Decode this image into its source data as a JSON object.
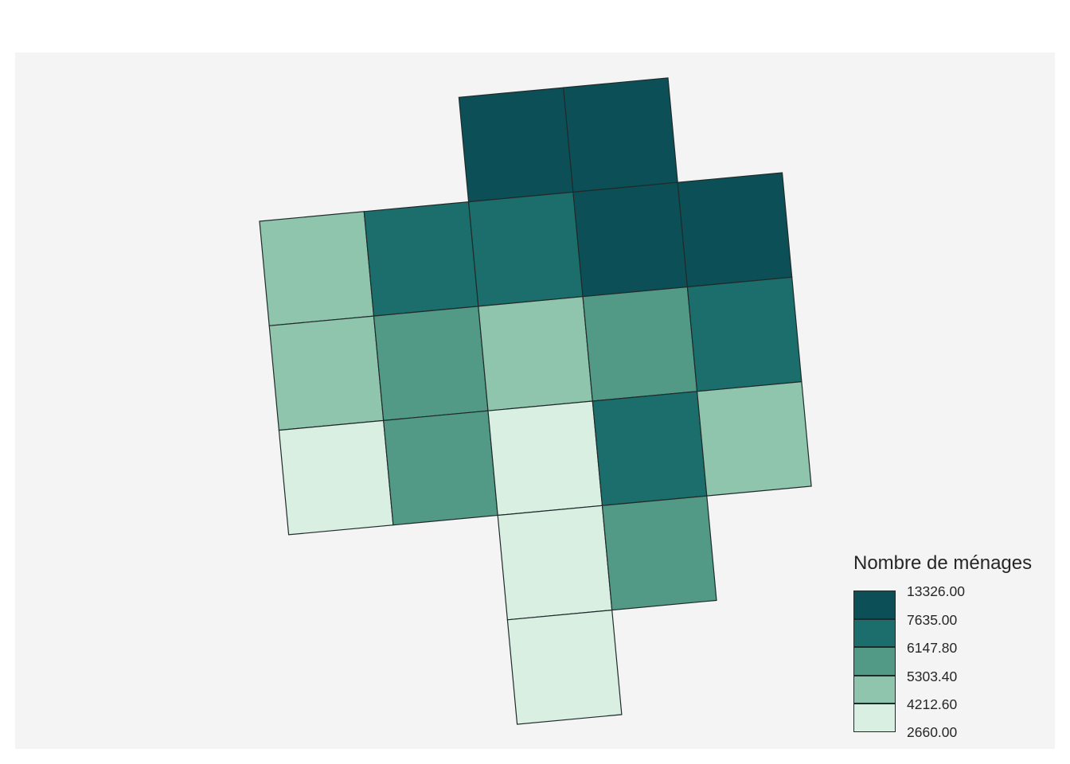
{
  "legend": {
    "title": "Nombre de ménages",
    "breaks": [
      "13326.00",
      "7635.00",
      "6147.80",
      "5303.40",
      "4212.60",
      "2660.00"
    ],
    "classes": [
      {
        "color": "#0d4f56"
      },
      {
        "color": "#1b6e6c"
      },
      {
        "color": "#529986"
      },
      {
        "color": "#90c5ad"
      },
      {
        "color": "#d9efe2"
      }
    ]
  },
  "map": {
    "background": "#f4f4f4",
    "stroke": "#1f2a2a",
    "grid": [
      {
        "row": 0,
        "col": 2,
        "class": 0
      },
      {
        "row": 0,
        "col": 3,
        "class": 0
      },
      {
        "row": 1,
        "col": 0,
        "class": 3
      },
      {
        "row": 1,
        "col": 1,
        "class": 1
      },
      {
        "row": 1,
        "col": 2,
        "class": 1
      },
      {
        "row": 1,
        "col": 3,
        "class": 0
      },
      {
        "row": 1,
        "col": 4,
        "class": 0
      },
      {
        "row": 2,
        "col": 0,
        "class": 3
      },
      {
        "row": 2,
        "col": 1,
        "class": 2
      },
      {
        "row": 2,
        "col": 2,
        "class": 3
      },
      {
        "row": 2,
        "col": 3,
        "class": 2
      },
      {
        "row": 2,
        "col": 4,
        "class": 1
      },
      {
        "row": 3,
        "col": 0,
        "class": 4
      },
      {
        "row": 3,
        "col": 1,
        "class": 2
      },
      {
        "row": 3,
        "col": 2,
        "class": 4
      },
      {
        "row": 3,
        "col": 3,
        "class": 1
      },
      {
        "row": 3,
        "col": 4,
        "class": 3
      },
      {
        "row": 4,
        "col": 2,
        "class": 4
      },
      {
        "row": 4,
        "col": 3,
        "class": 2
      },
      {
        "row": 5,
        "col": 2,
        "class": 4
      }
    ]
  }
}
